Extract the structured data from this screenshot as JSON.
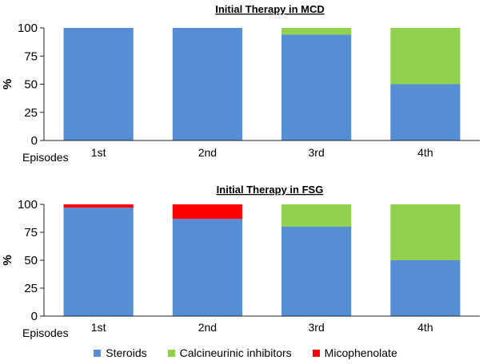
{
  "legend_label": "Episodes",
  "legend": [
    {
      "name": "Steroids",
      "color": "#558ed5"
    },
    {
      "name": "Calcineurinic inhibitors",
      "color": "#92d050"
    },
    {
      "name": "Micophenolate",
      "color": "#ff0000"
    }
  ],
  "chart_data": [
    {
      "type": "bar",
      "stacked": true,
      "title": "Initial Therapy  in MCD",
      "ylabel": "%",
      "xlabel": "Episodes",
      "categories": [
        "1st",
        "2nd",
        "3rd",
        "4th"
      ],
      "ylim": [
        0,
        100
      ],
      "yticks": [
        0,
        25,
        50,
        75,
        100
      ],
      "series": [
        {
          "name": "Steroids",
          "color": "#558ed5",
          "values": [
            100,
            100,
            94,
            50
          ]
        },
        {
          "name": "Calcineurinic inhibitors",
          "color": "#92d050",
          "values": [
            0,
            0,
            6,
            50
          ]
        },
        {
          "name": "Micophenolate",
          "color": "#ff0000",
          "values": [
            0,
            0,
            0,
            0
          ]
        }
      ]
    },
    {
      "type": "bar",
      "stacked": true,
      "title": "Initial Therapy  in FSG",
      "ylabel": "%",
      "xlabel": "Episodes",
      "categories": [
        "1st",
        "2nd",
        "3rd",
        "4th"
      ],
      "ylim": [
        0,
        100
      ],
      "yticks": [
        0,
        25,
        50,
        75,
        100
      ],
      "series": [
        {
          "name": "Steroids",
          "color": "#558ed5",
          "values": [
            97,
            87,
            80,
            50
          ]
        },
        {
          "name": "Calcineurinic inhibitors",
          "color": "#92d050",
          "values": [
            0,
            0,
            20,
            50
          ]
        },
        {
          "name": "Micophenolate",
          "color": "#ff0000",
          "values": [
            3,
            13,
            0,
            0
          ]
        }
      ]
    }
  ]
}
